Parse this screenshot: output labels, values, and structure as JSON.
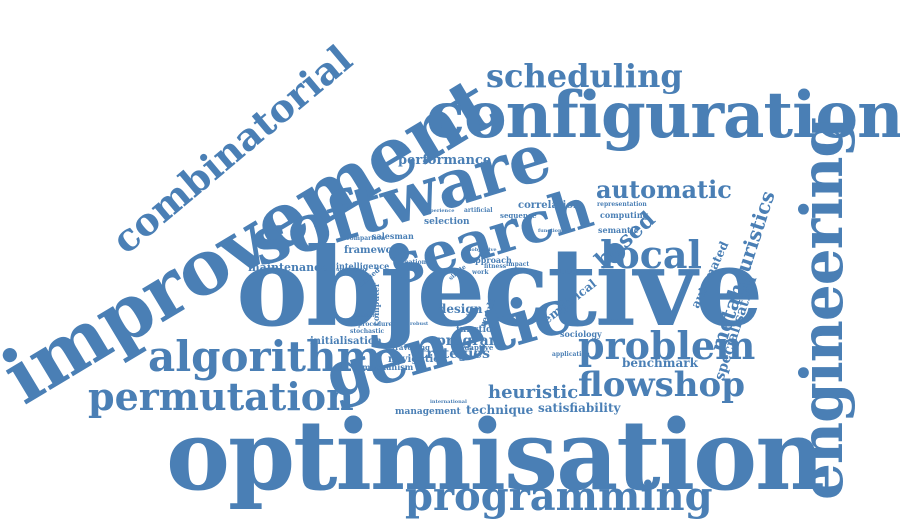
{
  "cloud": {
    "color": "#4a7fb5",
    "words": {
      "objective": "objective",
      "optimisation": "optimisation",
      "improvement": "improvement",
      "configuration": "configuration",
      "software": "software",
      "search": "search",
      "genetic": "genetic",
      "engineering": "engineering",
      "algorithm": "algorithm",
      "programming": "programming",
      "permutation": "permutation",
      "problem": "problem",
      "flowshop": "flowshop",
      "combinatorial": "combinatorial",
      "scheduling": "scheduling",
      "local": "local",
      "automatic": "automatic",
      "metaheuristics": "metaheuristics",
      "based": "based",
      "heuristic": "heuristic",
      "performance": "performance",
      "maintenance": "maintenance",
      "benchmark": "benchmark",
      "specialisation": "specialisation",
      "strategies": "strategies",
      "program": "program",
      "technique": "technique",
      "satisfiability": "satisfiability",
      "design": "design",
      "empirical": "empirical",
      "automated": "automated",
      "initialisation": "initialisation",
      "navigation": "navigation",
      "management": "management",
      "mechanism": "mechanism",
      "function": "function",
      "correlation": "correlation",
      "framework": "framework",
      "computing": "computing",
      "selection": "selection",
      "semantic": "semantic",
      "salesman": "salesman",
      "intelligence": "intelligence",
      "sequence": "sequence",
      "approach": "approach",
      "representation": "representation",
      "solution": "solution",
      "sociology": "sociology",
      "computer": "computer",
      "travelling": "travelling",
      "stochastic": "stochastic",
      "procedure": "procedure",
      "application": "application",
      "parameter": "parameter",
      "adaptive": "adaptive",
      "result": "result",
      "impact": "impact",
      "comparison": "comparison",
      "underlying": "underlying",
      "statistic": "statistic",
      "artificial": "artificial",
      "creation": "creation",
      "fitness": "fitness",
      "work": "work",
      "single": "single",
      "biobjective": "biobjective",
      "robust": "robust",
      "unified": "unified",
      "international": "international",
      "experience": "experience",
      "functional": "functional"
    }
  }
}
